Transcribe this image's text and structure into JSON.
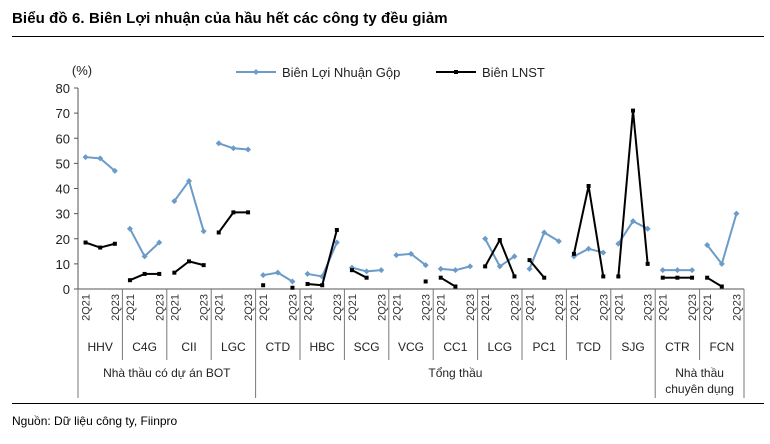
{
  "header": {
    "title": "Biểu đồ 6. Biên Lợi nhuận của hầu hết các công ty đều giảm"
  },
  "footer": {
    "source": "Nguồn: Dữ liệu công ty, Fiinpro"
  },
  "colors": {
    "gross": "#6b9bc8",
    "net": "#000000"
  },
  "chart_data": {
    "type": "line",
    "title": "",
    "ylabel": "(%)",
    "ylim": [
      0,
      80
    ],
    "yticks": [
      0,
      10,
      20,
      30,
      40,
      50,
      60,
      70,
      80
    ],
    "legend": [
      "Biên Lợi Nhuận Gộp",
      "Biên LNST"
    ],
    "legend_position": "top",
    "period_labels": [
      "2Q21",
      "2Q23"
    ],
    "companies": [
      {
        "name": "HHV",
        "gross": [
          52.5,
          52,
          47
        ],
        "net": [
          18.5,
          16.5,
          18
        ]
      },
      {
        "name": "C4G",
        "gross": [
          24,
          13,
          18.5
        ],
        "net": [
          3.5,
          6,
          6
        ]
      },
      {
        "name": "CII",
        "gross": [
          35,
          43,
          23
        ],
        "net": [
          6.5,
          11,
          9.5
        ]
      },
      {
        "name": "LGC",
        "gross": [
          58,
          56,
          55.5
        ],
        "net": [
          22.5,
          30.5,
          30.5
        ]
      },
      {
        "name": "CTD",
        "gross": [
          5.5,
          6.5,
          3
        ],
        "net": [
          1.5,
          null,
          0.5
        ]
      },
      {
        "name": "HBC",
        "gross": [
          6,
          5,
          18.5
        ],
        "net": [
          2,
          1.5,
          23.5
        ]
      },
      {
        "name": "SCG",
        "gross": [
          8.5,
          7,
          7.5
        ],
        "net": [
          7.5,
          4.5,
          null
        ]
      },
      {
        "name": "VCG",
        "gross": [
          13.5,
          14,
          9.5
        ],
        "net": [
          null,
          null,
          3
        ]
      },
      {
        "name": "CC1",
        "gross": [
          8,
          7.5,
          9
        ],
        "net": [
          4.5,
          1,
          null
        ]
      },
      {
        "name": "LCG",
        "gross": [
          20,
          9,
          13
        ],
        "net": [
          9,
          19.5,
          5
        ]
      },
      {
        "name": "PC1",
        "gross": [
          8,
          22.5,
          19
        ],
        "net": [
          11.5,
          4.5,
          null
        ]
      },
      {
        "name": "TCD",
        "gross": [
          13,
          16,
          14.5
        ],
        "net": [
          14,
          41,
          5
        ]
      },
      {
        "name": "SJG",
        "gross": [
          18,
          27,
          24
        ],
        "net": [
          5,
          71,
          10
        ]
      },
      {
        "name": "CTR",
        "gross": [
          7.5,
          7.5,
          7.5
        ],
        "net": [
          4.5,
          4.5,
          4.5
        ]
      },
      {
        "name": "FCN",
        "gross": [
          17.5,
          10,
          30
        ],
        "net": [
          4.5,
          1,
          null
        ]
      }
    ],
    "groups": [
      {
        "label": "Nhà thầu có dự án BOT",
        "start": 0,
        "end": 3
      },
      {
        "label": "Tổng thầu",
        "start": 4,
        "end": 12
      },
      {
        "label": "Nhà thầu chuyên dụng",
        "start": 13,
        "end": 14
      }
    ]
  }
}
